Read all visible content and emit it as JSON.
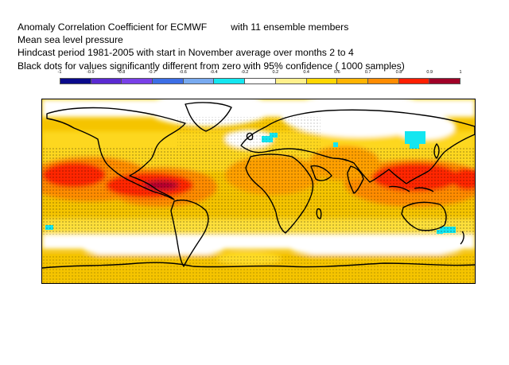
{
  "title": {
    "line1_a": "Anomaly Correlation Coefficient for ECMWF",
    "line1_b": "with 11 ensemble members",
    "line2": "Mean sea level pressure",
    "line3": "Hindcast period 1981-2005 with start in November average over months  2 to  4",
    "line4": "Black dots for values significantly different from zero with 95% confidence ( 1000 samples)"
  },
  "colorbar": {
    "labels": [
      "-1",
      "-0.9",
      "-0.8",
      "-0.7",
      "-0.6",
      "-0.4",
      "-0.2",
      "0.2",
      "0.4",
      "0.6",
      "0.7",
      "0.8",
      "0.9",
      "1"
    ],
    "colors": [
      "#0a0a8c",
      "#5a2ad2",
      "#7840e8",
      "#3c6ee6",
      "#78aaf0",
      "#14e6f0",
      "#ffffff",
      "#fff08c",
      "#ffd700",
      "#ffb400",
      "#ff8c00",
      "#ff1e00",
      "#a00028"
    ]
  },
  "map": {
    "legend_meaning": "ACC shading with significance stippling"
  }
}
